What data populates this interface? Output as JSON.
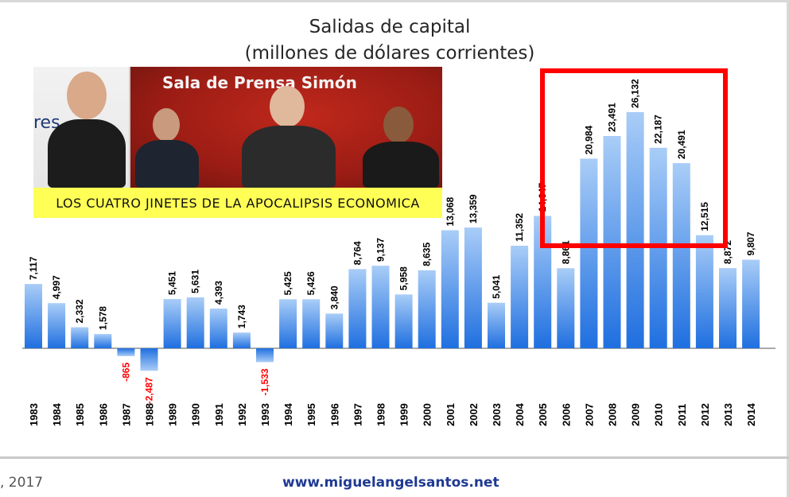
{
  "chart_data": {
    "type": "bar",
    "title": "Salidas de capital",
    "subtitle": "(millones de dólares corrientes)",
    "categories": [
      "1983",
      "1984",
      "1985",
      "1986",
      "1987",
      "1988",
      "1989",
      "1990",
      "1991",
      "1992",
      "1993",
      "1994",
      "1995",
      "1996",
      "1997",
      "1998",
      "1999",
      "2000",
      "2001",
      "2002",
      "2003",
      "2004",
      "2005",
      "2006",
      "2007",
      "2008",
      "2009",
      "2010",
      "2011",
      "2012",
      "2013",
      "2014"
    ],
    "values": [
      7117,
      4997,
      2332,
      1578,
      -865,
      -2487,
      5451,
      5631,
      4393,
      1743,
      -1533,
      5425,
      5426,
      3840,
      8764,
      9137,
      5958,
      8635,
      13068,
      13359,
      5041,
      11352,
      14647,
      8861,
      20984,
      23491,
      26132,
      22187,
      20491,
      12515,
      8872,
      9807
    ],
    "data_labels": [
      "7,117",
      "4,997",
      "2,332",
      "1,578",
      "-865",
      "-2,487",
      "5,451",
      "5,631",
      "4,393",
      "1,743",
      "-1,533",
      "5,425",
      "5,426",
      "3,840",
      "8,764",
      "9,137",
      "5,958",
      "8,635",
      "13,068",
      "13,359",
      "5,041",
      "11,352",
      "14,647",
      "8,861",
      "20,984",
      "23,491",
      "26,132",
      "22,187",
      "20,491",
      "12,515",
      "8,872",
      "9,807"
    ],
    "ylim": [
      -3000,
      28000
    ],
    "grid": false,
    "legend": "none",
    "highlight_range": [
      "2005",
      "2012"
    ],
    "colors": {
      "bar_top": "#a9cdf7",
      "bar_bottom": "#1f6fe0",
      "negative_label": "#ff0000",
      "positive_label": "#000000",
      "highlight": "#ff0000",
      "baseline": "#555555"
    }
  },
  "photo": {
    "banner": "Sala de Prensa Simón",
    "left_text": "res",
    "caption": "LOS CUATRO JINETES DE LA APOCALIPSIS ECONOMICA"
  },
  "footer": {
    "left": ", 2017",
    "url": "www.miguelangelsantos.net"
  }
}
